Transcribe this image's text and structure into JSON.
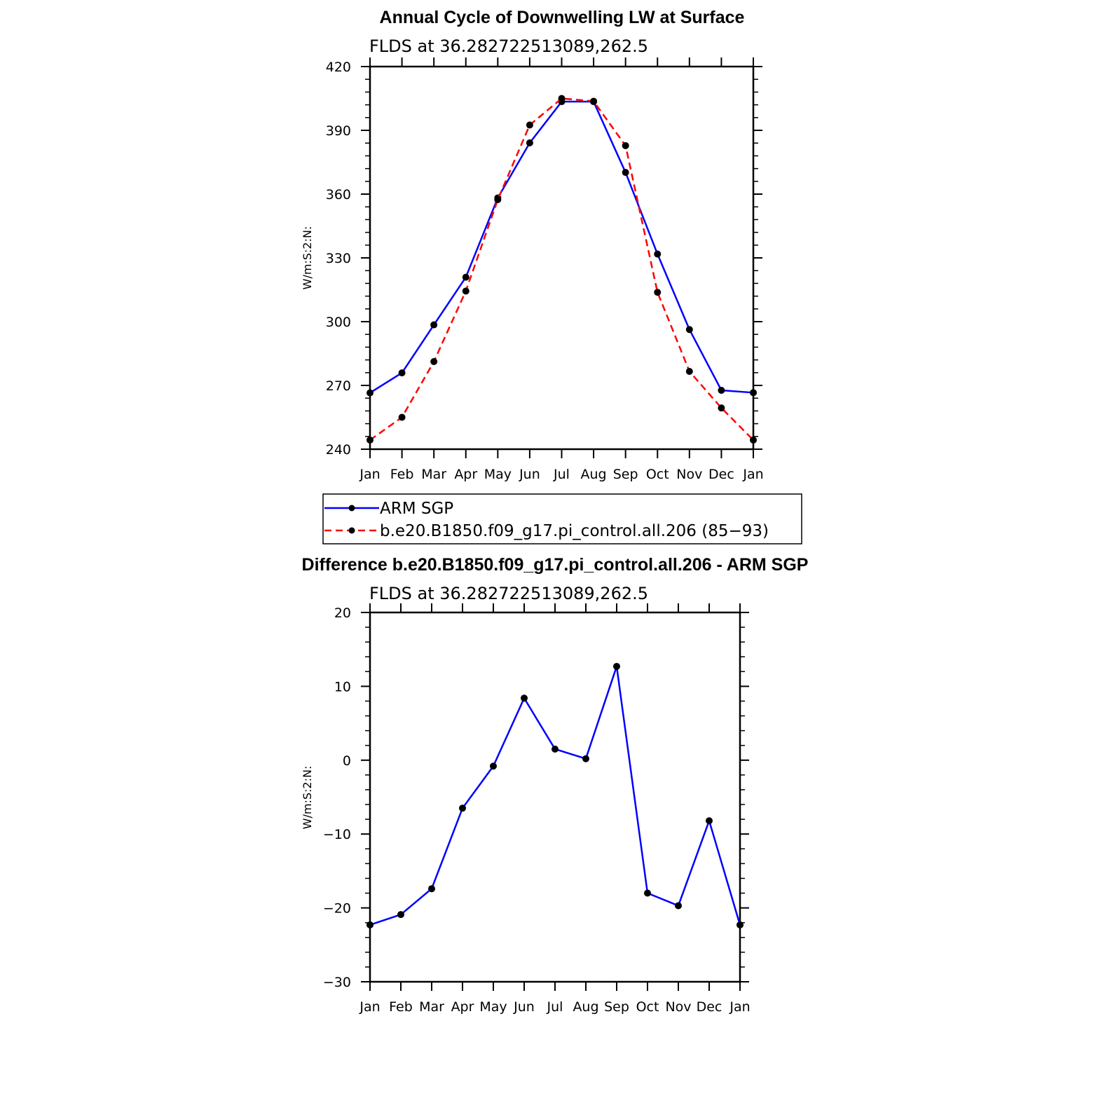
{
  "chart_data": [
    {
      "type": "line",
      "title": "Annual Cycle of Downwelling LW at Surface",
      "subtitle": "FLDS at 36.282722513089,262.5",
      "ylabel": "W/m:S:2:N:",
      "xlabel": "",
      "categories": [
        "Jan",
        "Feb",
        "Mar",
        "Apr",
        "May",
        "Jun",
        "Jul",
        "Aug",
        "Sep",
        "Oct",
        "Nov",
        "Dec",
        "Jan"
      ],
      "ylim": [
        240,
        420
      ],
      "yticks": [
        240,
        270,
        300,
        330,
        360,
        390,
        420
      ],
      "series": [
        {
          "name": "ARM SGP",
          "color": "#0000ff",
          "dash": "solid",
          "values": [
            266.5,
            275.9,
            298.5,
            320.9,
            358.2,
            384.1,
            403.5,
            403.5,
            370.2,
            331.8,
            296.3,
            267.7,
            266.6
          ]
        },
        {
          "name": "b.e20.B1850.f09_g17.pi_control.all.206 (85−93)",
          "color": "#ff0000",
          "dash": "dashed",
          "values": [
            244.3,
            255.0,
            281.2,
            314.4,
            357.4,
            392.5,
            405.0,
            403.7,
            382.8,
            313.8,
            276.6,
            259.4,
            244.3
          ]
        }
      ],
      "legend_position": "below"
    },
    {
      "type": "line",
      "title": "Difference b.e20.B1850.f09_g17.pi_control.all.206 - ARM SGP",
      "subtitle": "FLDS at 36.282722513089,262.5",
      "ylabel": "W/m:S:2:N:",
      "xlabel": "",
      "categories": [
        "Jan",
        "Feb",
        "Mar",
        "Apr",
        "May",
        "Jun",
        "Jul",
        "Aug",
        "Sep",
        "Oct",
        "Nov",
        "Dec",
        "Jan"
      ],
      "ylim": [
        -30,
        20
      ],
      "yticks": [
        -30,
        -20,
        -10,
        0,
        10,
        20
      ],
      "ytick_labels": [
        "−30",
        "−20",
        "−10",
        "0",
        "10",
        "20"
      ],
      "series": [
        {
          "color": "#0000ff",
          "dash": "solid",
          "values": [
            -22.3,
            -20.9,
            -17.4,
            -6.5,
            -0.8,
            8.4,
            1.5,
            0.2,
            12.7,
            -18.0,
            -19.7,
            -8.2,
            -22.3
          ]
        }
      ]
    }
  ]
}
